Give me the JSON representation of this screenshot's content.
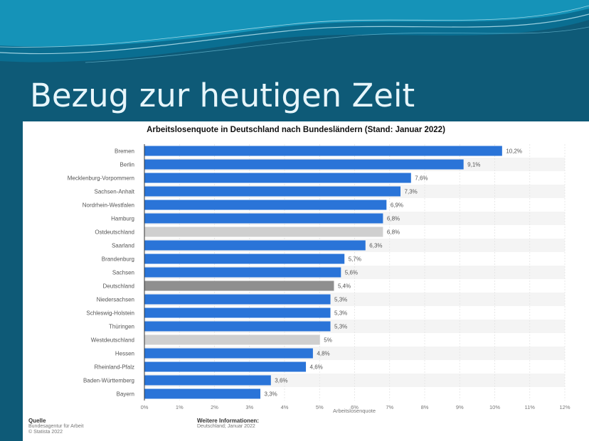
{
  "slide": {
    "title": "Bezug zur heutigen Zeit",
    "background_color": "#0e5a77",
    "wave_colors": [
      "#1593b8",
      "#0a6e91",
      "#bfe8f3"
    ]
  },
  "chart_data": {
    "type": "bar",
    "orientation": "horizontal",
    "title": "Arbeitslosenquote in Deutschland nach Bundesländern (Stand: Januar 2022)",
    "xlabel": "Arbeitslosenquote",
    "ylabel": "",
    "xlim": [
      0,
      12
    ],
    "xticks": [
      "0%",
      "1%",
      "2%",
      "3%",
      "4%",
      "5%",
      "6%",
      "7%",
      "8%",
      "9%",
      "10%",
      "11%",
      "12%"
    ],
    "grid": true,
    "categories": [
      "Bremen",
      "Berlin",
      "Mecklenburg-Vorpommern",
      "Sachsen-Anhalt",
      "Nordrhein-Westfalen",
      "Hamburg",
      "Ostdeutschland",
      "Saarland",
      "Brandenburg",
      "Sachsen",
      "Deutschland",
      "Niedersachsen",
      "Schleswig-Holstein",
      "Thüringen",
      "Westdeutschland",
      "Hessen",
      "Rheinland-Pfalz",
      "Baden-Württemberg",
      "Bayern"
    ],
    "values": [
      10.2,
      9.1,
      7.6,
      7.3,
      6.9,
      6.8,
      6.8,
      6.3,
      5.7,
      5.6,
      5.4,
      5.3,
      5.3,
      5.3,
      5.0,
      4.8,
      4.6,
      3.6,
      3.3
    ],
    "value_labels": [
      "10,2%",
      "9,1%",
      "7,6%",
      "7,3%",
      "6,9%",
      "6,8%",
      "6,8%",
      "6,3%",
      "5,7%",
      "5,6%",
      "5,4%",
      "5,3%",
      "5,3%",
      "5,3%",
      "5%",
      "4,8%",
      "4,6%",
      "3,6%",
      "3,3%"
    ],
    "bar_colors": [
      "#2a74d8",
      "#2a74d8",
      "#2a74d8",
      "#2a74d8",
      "#2a74d8",
      "#2a74d8",
      "#cfcfcf",
      "#2a74d8",
      "#2a74d8",
      "#2a74d8",
      "#8f8f8f",
      "#2a74d8",
      "#2a74d8",
      "#2a74d8",
      "#cfcfcf",
      "#2a74d8",
      "#2a74d8",
      "#2a74d8",
      "#2a74d8"
    ]
  },
  "footer": {
    "source_heading": "Quelle",
    "source_lines": [
      "Bundesagentur für Arbeit",
      "© Statista 2022"
    ],
    "info_heading": "Weitere Informationen:",
    "info_lines": [
      "Deutschland; Januar 2022"
    ]
  }
}
